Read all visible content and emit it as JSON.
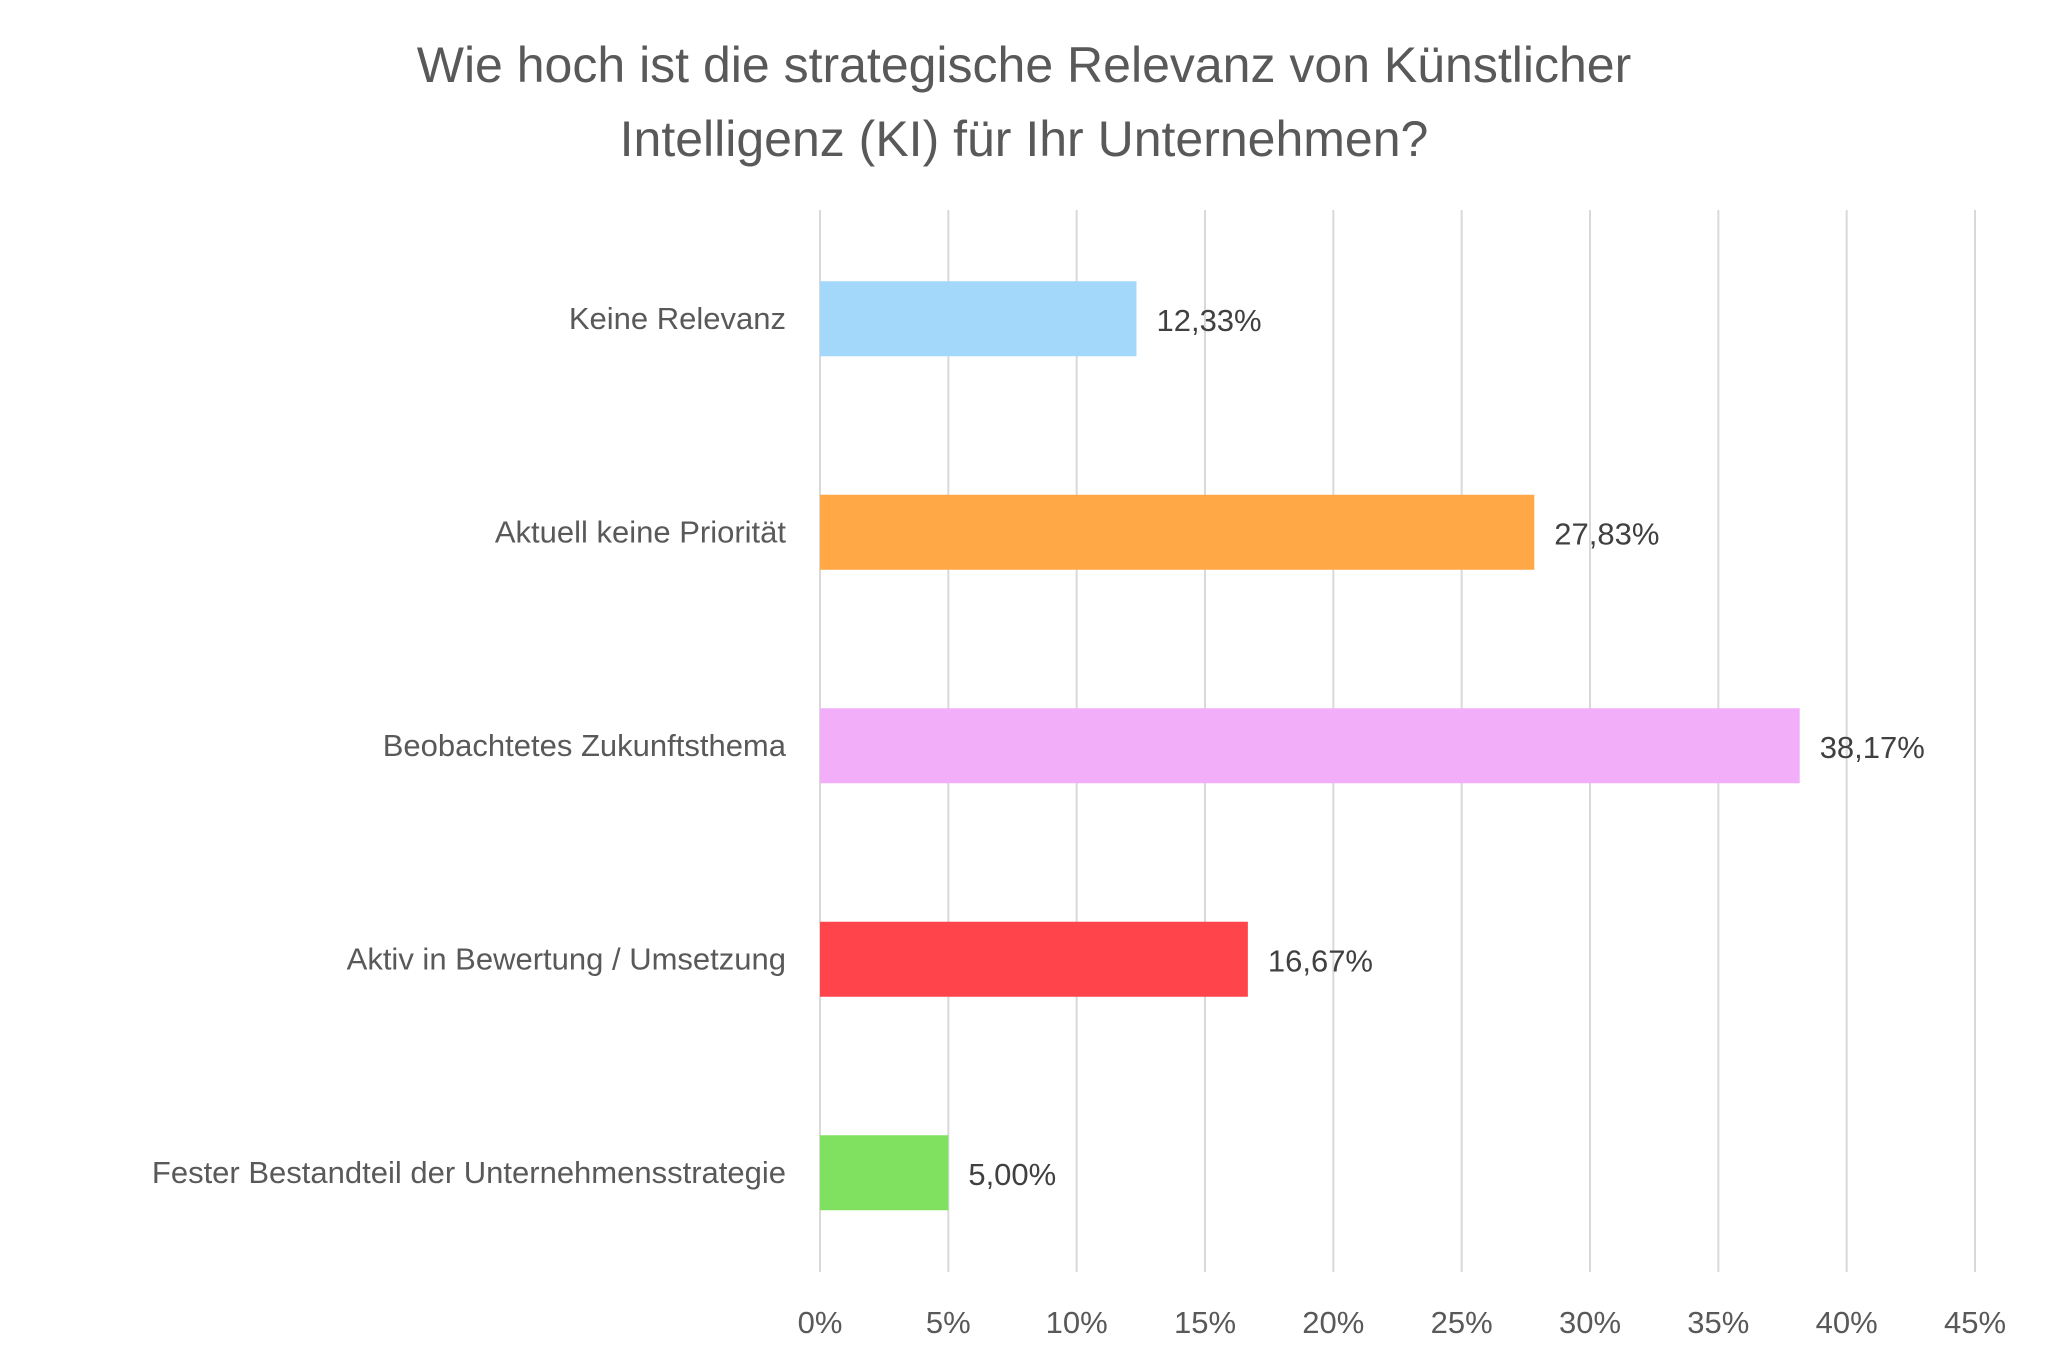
{
  "chart_data": {
    "type": "bar",
    "orientation": "horizontal",
    "title": "Wie hoch ist die strategische Relevanz von Künstlicher Intelligenz (KI) für Ihr Unternehmen?",
    "title_lines": [
      "Wie hoch ist die strategische Relevanz von Künstlicher",
      "Intelligenz (KI) für Ihr Unternehmen?"
    ],
    "categories": [
      "Keine Relevanz",
      "Aktuell keine Priorität",
      "Beobachtetes Zukunftsthema",
      "Aktiv in Bewertung / Umsetzung",
      "Fester Bestandteil der Unternehmensstrategie"
    ],
    "values": [
      12.33,
      27.83,
      38.17,
      16.67,
      5.0
    ],
    "value_labels": [
      "12,33%",
      "27,83%",
      "38,17%",
      "16,67%",
      "5,00%"
    ],
    "colors": [
      "#A3D8FB",
      "#FFA845",
      "#F3AEFA",
      "#FF444B",
      "#7FE15F"
    ],
    "xlabel": "",
    "ylabel": "",
    "xlim": [
      0,
      45
    ],
    "x_ticks": [
      0,
      5,
      10,
      15,
      20,
      25,
      30,
      35,
      40,
      45
    ],
    "x_tick_labels": [
      "0%",
      "5%",
      "10%",
      "15%",
      "20%",
      "25%",
      "30%",
      "35%",
      "40%",
      "45%"
    ],
    "grid": "vertical",
    "legend": "none",
    "gridline_color": "#D9D9D9"
  }
}
